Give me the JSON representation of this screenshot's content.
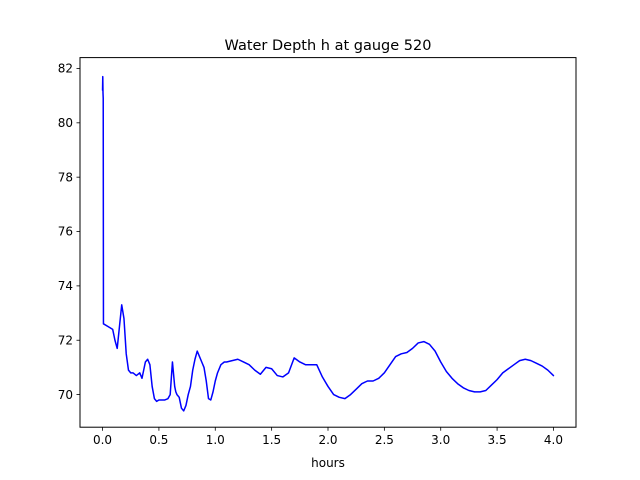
{
  "chart_data": {
    "type": "line",
    "title": "Water Depth h at gauge 520",
    "xlabel": "hours",
    "ylabel": "",
    "xlim": [
      -0.2,
      4.2
    ],
    "ylim": [
      68.8,
      82.4
    ],
    "xticks": [
      0.0,
      0.5,
      1.0,
      1.5,
      2.0,
      2.5,
      3.0,
      3.5,
      4.0
    ],
    "xtick_labels": [
      "0.0",
      "0.5",
      "1.0",
      "1.5",
      "2.0",
      "2.5",
      "3.0",
      "3.5",
      "4.0"
    ],
    "yticks": [
      70,
      72,
      74,
      76,
      78,
      80,
      82
    ],
    "ytick_labels": [
      "70",
      "72",
      "74",
      "76",
      "78",
      "80",
      "82"
    ],
    "grid": false,
    "legend": "none",
    "series": [
      {
        "color": "#0000ff",
        "x": [
          0.0,
          0.002,
          0.004,
          0.006,
          0.008,
          0.01,
          0.05,
          0.09,
          0.11,
          0.13,
          0.15,
          0.17,
          0.19,
          0.21,
          0.23,
          0.25,
          0.27,
          0.3,
          0.33,
          0.35,
          0.38,
          0.4,
          0.42,
          0.44,
          0.46,
          0.48,
          0.5,
          0.52,
          0.55,
          0.58,
          0.6,
          0.62,
          0.64,
          0.65,
          0.66,
          0.68,
          0.7,
          0.72,
          0.74,
          0.76,
          0.78,
          0.8,
          0.82,
          0.84,
          0.86,
          0.88,
          0.9,
          0.92,
          0.94,
          0.96,
          0.98,
          1.0,
          1.02,
          1.05,
          1.08,
          1.1,
          1.15,
          1.2,
          1.25,
          1.3,
          1.35,
          1.4,
          1.45,
          1.5,
          1.55,
          1.6,
          1.65,
          1.7,
          1.75,
          1.8,
          1.85,
          1.9,
          1.95,
          2.0,
          2.05,
          2.1,
          2.15,
          2.2,
          2.25,
          2.3,
          2.35,
          2.4,
          2.45,
          2.5,
          2.55,
          2.6,
          2.65,
          2.7,
          2.75,
          2.8,
          2.85,
          2.9,
          2.95,
          3.0,
          3.05,
          3.1,
          3.15,
          3.2,
          3.25,
          3.3,
          3.35,
          3.4,
          3.45,
          3.5,
          3.55,
          3.6,
          3.65,
          3.7,
          3.75,
          3.8,
          3.85,
          3.9,
          3.95,
          4.0
        ],
        "y": [
          81.2,
          81.7,
          81.1,
          80.9,
          72.6,
          72.6,
          72.5,
          72.4,
          72.0,
          71.7,
          72.5,
          73.3,
          72.8,
          71.5,
          70.9,
          70.8,
          70.8,
          70.7,
          70.8,
          70.6,
          71.2,
          71.3,
          71.1,
          70.3,
          69.85,
          69.75,
          69.8,
          69.8,
          69.8,
          69.85,
          70.0,
          71.2,
          70.3,
          70.1,
          70.0,
          69.9,
          69.5,
          69.4,
          69.6,
          70.0,
          70.3,
          70.9,
          71.3,
          71.6,
          71.4,
          71.2,
          71.0,
          70.5,
          69.85,
          69.8,
          70.1,
          70.5,
          70.8,
          71.1,
          71.2,
          71.2,
          71.25,
          71.3,
          71.2,
          71.1,
          70.9,
          70.75,
          71.0,
          70.95,
          70.7,
          70.65,
          70.8,
          71.35,
          71.2,
          71.1,
          71.1,
          71.1,
          70.65,
          70.3,
          70.0,
          69.9,
          69.85,
          70.0,
          70.2,
          70.4,
          70.5,
          70.5,
          70.6,
          70.8,
          71.1,
          71.4,
          71.5,
          71.55,
          71.7,
          71.9,
          71.95,
          71.85,
          71.6,
          71.2,
          70.85,
          70.6,
          70.4,
          70.25,
          70.15,
          70.1,
          70.1,
          70.15,
          70.35,
          70.55,
          70.8,
          70.95,
          71.1,
          71.25,
          71.3,
          71.25,
          71.15,
          71.05,
          70.9,
          70.7
        ]
      }
    ]
  }
}
